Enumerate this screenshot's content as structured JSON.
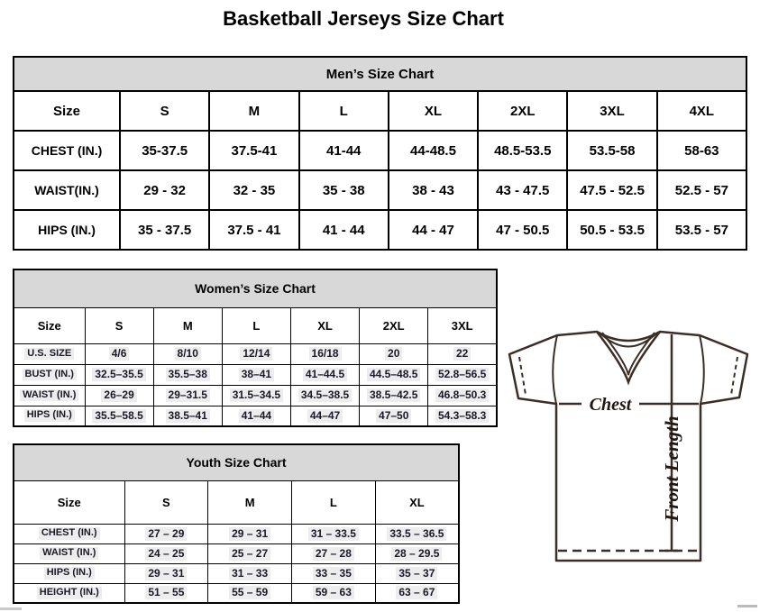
{
  "page": {
    "title": "Basketball Jerseys Size Chart"
  },
  "mens": {
    "title": "Men’s Size Chart",
    "columns": [
      "Size",
      "S",
      "M",
      "L",
      "XL",
      "2XL",
      "3XL",
      "4XL"
    ],
    "rows": [
      {
        "label": "CHEST (IN.)",
        "values": [
          "35-37.5",
          "37.5-41",
          "41-44",
          "44-48.5",
          "48.5-53.5",
          "53.5-58",
          "58-63"
        ]
      },
      {
        "label": "WAIST(IN.)",
        "values": [
          "29 - 32",
          "32 - 35",
          "35 - 38",
          "38 - 43",
          "43 - 47.5",
          "47.5 - 52.5",
          "52.5 - 57"
        ]
      },
      {
        "label": "HIPS (IN.)",
        "values": [
          "35 - 37.5",
          "37.5 - 41",
          "41 - 44",
          "44 - 47",
          "47 - 50.5",
          "50.5 - 53.5",
          "53.5 - 57"
        ]
      }
    ]
  },
  "womens": {
    "title": "Women’s Size Chart",
    "columns": [
      "Size",
      "S",
      "M",
      "L",
      "XL",
      "2XL",
      "3XL"
    ],
    "rows": [
      {
        "label": "U.S. SIZE",
        "values": [
          "4/6",
          "8/10",
          "12/14",
          "16/18",
          "20",
          "22"
        ]
      },
      {
        "label": "BUST (IN.)",
        "values": [
          "32.5–35.5",
          "35.5–38",
          "38–41",
          "41–44.5",
          "44.5–48.5",
          "52.8–56.5"
        ]
      },
      {
        "label": "WAIST (IN.)",
        "values": [
          "26–29",
          "29–31.5",
          "31.5–34.5",
          "34.5–38.5",
          "38.5–42.5",
          "46.8–50.3"
        ]
      },
      {
        "label": "HIPS (IN.)",
        "values": [
          "35.5–58.5",
          "38.5–41",
          "41–44",
          "44–47",
          "47–50",
          "54.3–58.3"
        ]
      }
    ]
  },
  "youth": {
    "title": "Youth Size Chart",
    "columns": [
      "Size",
      "S",
      "M",
      "L",
      "XL"
    ],
    "rows": [
      {
        "label": "CHEST (IN.)",
        "values": [
          "27 – 29",
          "29 – 31",
          "31 – 33.5",
          "33.5 – 36.5"
        ]
      },
      {
        "label": "WAIST (IN.)",
        "values": [
          "24 – 25",
          "25 – 27",
          "27 – 28",
          "28 – 29.5"
        ]
      },
      {
        "label": "HIPS (IN.)",
        "values": [
          "29 – 31",
          "31 – 33",
          "33 – 35",
          "35 – 37"
        ]
      },
      {
        "label": "HEIGHT (IN.)",
        "values": [
          "51 – 55",
          "55 – 59",
          "59 – 63",
          "63 – 67"
        ]
      }
    ]
  },
  "diagram": {
    "chest_label": "Chest",
    "front_length_label": "Front Length"
  },
  "colors": {
    "header_bg": "#d8d8d8",
    "border": "#000000",
    "accent_text": "#191927",
    "hl": "#ededed",
    "diagram_line": "#3a2e26",
    "diagram_text": "#201813"
  }
}
